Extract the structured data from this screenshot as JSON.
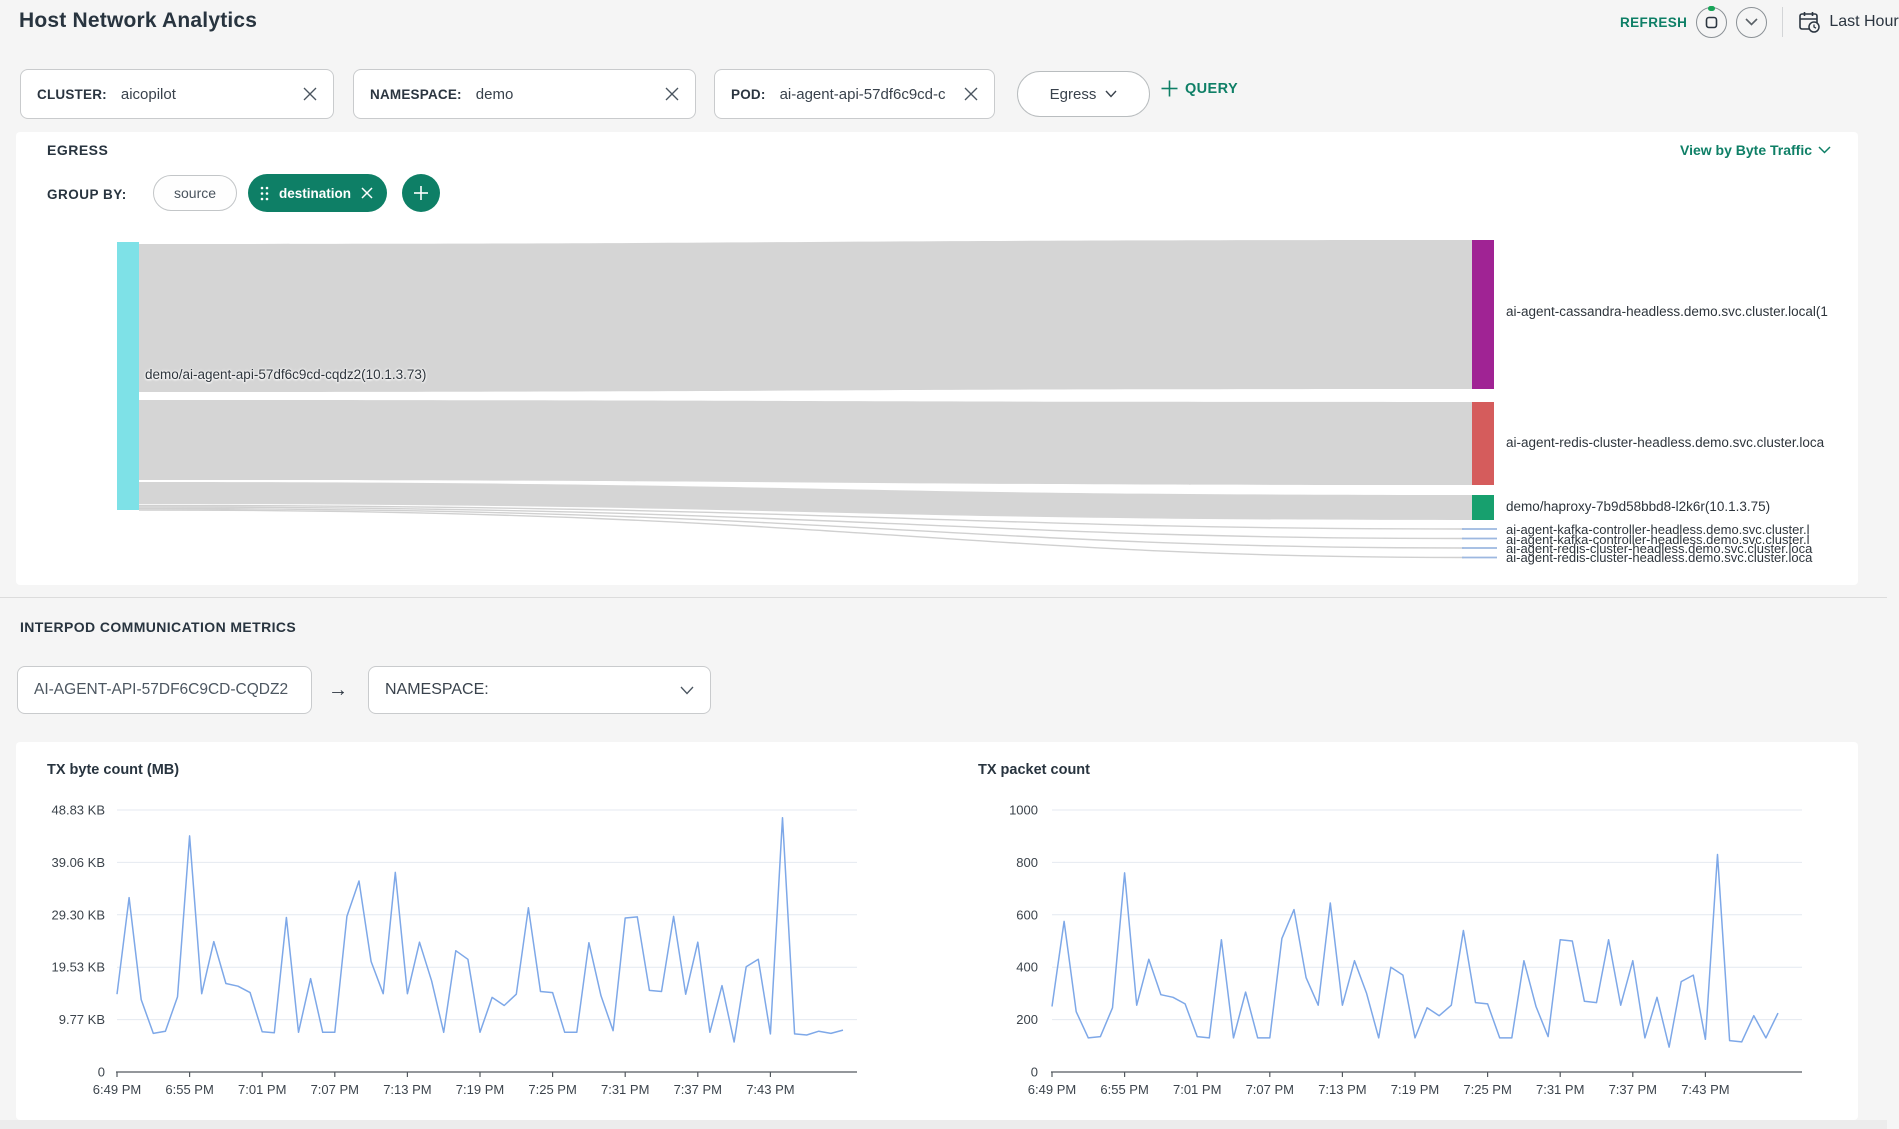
{
  "accent": "#0e7f66",
  "header": {
    "title": "Host Network Analytics",
    "refresh_label": "REFRESH",
    "time_range_label": "Last Hour"
  },
  "filters": {
    "cluster_label": "CLUSTER:",
    "cluster_value": "aicopilot",
    "namespace_label": "NAMESPACE:",
    "namespace_value": "demo",
    "pod_label": "POD:",
    "pod_value": "ai-agent-api-57df6c9cd-c",
    "direction_value": "Egress",
    "query_label": "QUERY"
  },
  "egress": {
    "title": "EGRESS",
    "view_by": "View by Byte Traffic",
    "group_by_label": "GROUP BY:",
    "chip_source": "source",
    "chip_destination": "destination"
  },
  "sankey": {
    "source_label": "demo/ai-agent-api-57df6c9cd-cqdz2(10.1.3.73)",
    "source_color": "#7ee1e7",
    "flow_color": "#d5d5d5",
    "destinations": [
      {
        "label": "ai-agent-cassandra-headless.demo.svc.cluster.local(1",
        "color": "#a02394"
      },
      {
        "label": "ai-agent-redis-cluster-headless.demo.svc.cluster.loca",
        "color": "#d55c5c"
      },
      {
        "label": "demo/haproxy-7b9d58bbd8-l2k6r(10.1.3.75)",
        "color": "#17a06e"
      },
      {
        "label": "ai-agent-kafka-controller-headless.demo.svc.cluster.l",
        "color": "#9db8e0"
      },
      {
        "label": "ai-agent-kafka-controller-headless.demo.svc.cluster.l",
        "color": "#9db8e0"
      },
      {
        "label": "ai-agent-redis-cluster-headless.demo.svc.cluster.loca",
        "color": "#9db8e0"
      },
      {
        "label": "ai-agent-redis-cluster-headless.demo.svc.cluster.loca",
        "color": "#9db8e0"
      }
    ]
  },
  "interpod": {
    "title": "INTERPOD COMMUNICATION METRICS",
    "pod_value": "AI-AGENT-API-57DF6C9CD-CQDZ2",
    "namespace_label": "NAMESPACE:"
  },
  "chart_data": [
    {
      "type": "line",
      "title": "TX byte count (MB)",
      "line_color": "#7ea8e8",
      "unit": "KB",
      "x_start": "6:49 PM",
      "x_interval_min": 1,
      "x_tick_labels": [
        "6:49 PM",
        "6:55 PM",
        "7:01 PM",
        "7:07 PM",
        "7:13 PM",
        "7:19 PM",
        "7:25 PM",
        "7:31 PM",
        "7:37 PM",
        "7:43 PM"
      ],
      "y_ticks": [
        48.83,
        39.06,
        29.3,
        19.53,
        9.77,
        0
      ],
      "y_tick_labels": [
        "48.83 KB",
        "39.06 KB",
        "29.30 KB",
        "19.53 KB",
        "9.77 KB",
        "0"
      ],
      "ylim": [
        0,
        48.83
      ],
      "grid": true,
      "values": [
        14.5,
        32.5,
        13.5,
        7.2,
        7.6,
        14,
        44,
        14.6,
        24.3,
        16.5,
        16,
        14.8,
        7.5,
        7.3,
        28.8,
        7.4,
        17.4,
        7.4,
        7.4,
        29,
        35.6,
        20.6,
        14.6,
        37.2,
        14.6,
        24.2,
        17,
        7.4,
        22.6,
        21,
        7.4,
        13.9,
        12.4,
        14.5,
        30.6,
        15,
        14.8,
        7.4,
        7.4,
        24.1,
        14.2,
        7.7,
        28.7,
        28.9,
        15.2,
        15,
        29,
        14.5,
        24.2,
        7.4,
        16.1,
        5.6,
        19.6,
        21,
        7.1,
        47.4,
        7.1,
        6.9,
        7.6,
        7.2,
        7.8
      ]
    },
    {
      "type": "line",
      "title": "TX packet count",
      "line_color": "#7ea8e8",
      "unit": "packets",
      "x_start": "6:49 PM",
      "x_interval_min": 1,
      "x_tick_labels": [
        "6:49 PM",
        "6:55 PM",
        "7:01 PM",
        "7:07 PM",
        "7:13 PM",
        "7:19 PM",
        "7:25 PM",
        "7:31 PM",
        "7:37 PM",
        "7:43 PM"
      ],
      "y_ticks": [
        1000,
        800,
        600,
        400,
        200,
        0
      ],
      "y_tick_labels": [
        "1000",
        "800",
        "600",
        "400",
        "200",
        "0"
      ],
      "ylim": [
        0,
        1000
      ],
      "grid": true,
      "values": [
        250,
        575,
        230,
        130,
        135,
        245,
        760,
        255,
        430,
        295,
        285,
        260,
        135,
        130,
        505,
        130,
        305,
        130,
        130,
        510,
        620,
        360,
        255,
        645,
        255,
        425,
        300,
        130,
        400,
        370,
        130,
        245,
        215,
        255,
        540,
        265,
        260,
        130,
        130,
        425,
        250,
        135,
        505,
        500,
        270,
        265,
        505,
        255,
        425,
        130,
        285,
        95,
        345,
        370,
        125,
        830,
        120,
        115,
        215,
        130,
        225
      ]
    }
  ]
}
